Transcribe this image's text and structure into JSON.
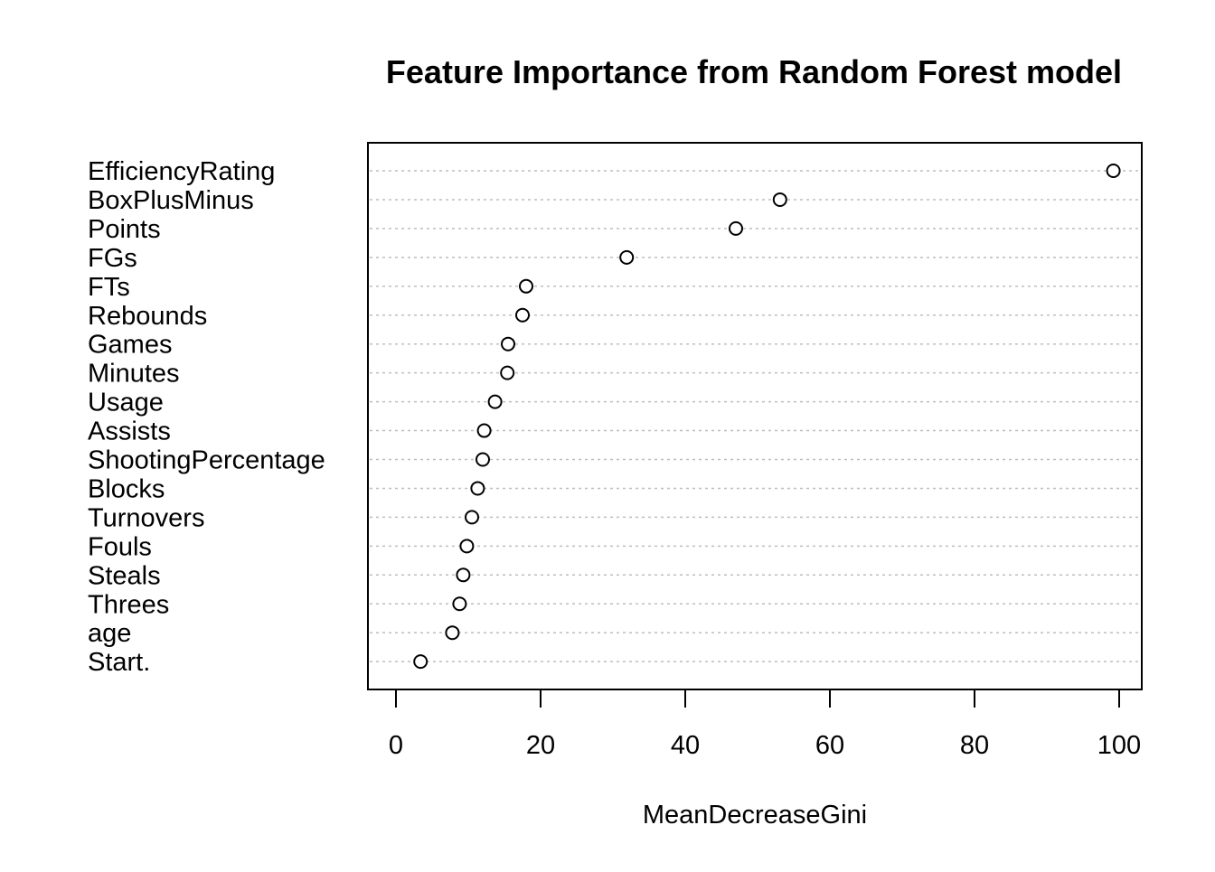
{
  "chart_data": {
    "type": "scatter",
    "subtype": "dotchart",
    "title": "Feature Importance from Random Forest model",
    "xlabel": "MeanDecreaseGini",
    "ylabel": "",
    "xlim": [
      -4,
      103
    ],
    "xticks": [
      0,
      20,
      40,
      60,
      80,
      100
    ],
    "grid": "dotted horizontal lines per category",
    "legend": "none",
    "categories": [
      "EfficiencyRating",
      "BoxPlusMinus",
      "Points",
      "FGs",
      "FTs",
      "Rebounds",
      "Games",
      "Minutes",
      "Usage",
      "Assists",
      "ShootingPercentage",
      "Blocks",
      "Turnovers",
      "Fouls",
      "Steals",
      "Threes",
      "age",
      "Start."
    ],
    "values": [
      99.2,
      53.1,
      47.0,
      31.9,
      18.0,
      17.5,
      15.5,
      15.4,
      13.7,
      12.2,
      12.0,
      11.3,
      10.5,
      9.8,
      9.3,
      8.8,
      7.8,
      3.4
    ],
    "colors": {
      "axis": "#000000",
      "grid": "#bebebe",
      "point_stroke": "#000000",
      "point_fill": "#ffffff"
    }
  }
}
